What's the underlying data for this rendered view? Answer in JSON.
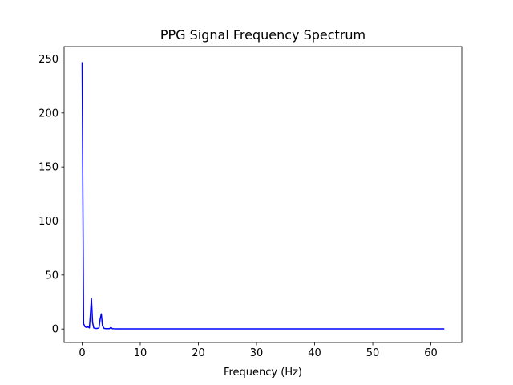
{
  "chart_data": {
    "type": "line",
    "title": "PPG Signal Frequency Spectrum",
    "xlabel": "Frequency (Hz)",
    "ylabel": "",
    "xlim": [
      -3.1,
      65.3
    ],
    "ylim": [
      -12.5,
      261.5
    ],
    "xticks": [
      0,
      10,
      20,
      30,
      40,
      50,
      60
    ],
    "yticks": [
      0,
      50,
      100,
      150,
      200,
      250
    ],
    "grid": false,
    "series": [
      {
        "color": "#0000ff",
        "x": [
          0,
          0.25,
          0.5,
          0.75,
          1.0,
          1.25,
          1.4,
          1.6,
          1.8,
          2.0,
          2.3,
          2.6,
          2.9,
          3.1,
          3.3,
          3.5,
          3.8,
          4.1,
          4.4,
          4.7,
          4.95,
          5.2,
          5.5,
          6,
          7,
          8,
          10,
          20,
          30,
          40,
          50,
          60,
          62.3
        ],
        "y": [
          247,
          5,
          2,
          1.5,
          2,
          1,
          12,
          28,
          6,
          1,
          0.5,
          0.5,
          1,
          9,
          14,
          3,
          0.5,
          0.3,
          0.3,
          0.3,
          1.5,
          0.3,
          0.2,
          0.1,
          0.1,
          0.1,
          0.1,
          0.1,
          0.1,
          0.1,
          0.1,
          0.1,
          0.1
        ]
      }
    ]
  }
}
